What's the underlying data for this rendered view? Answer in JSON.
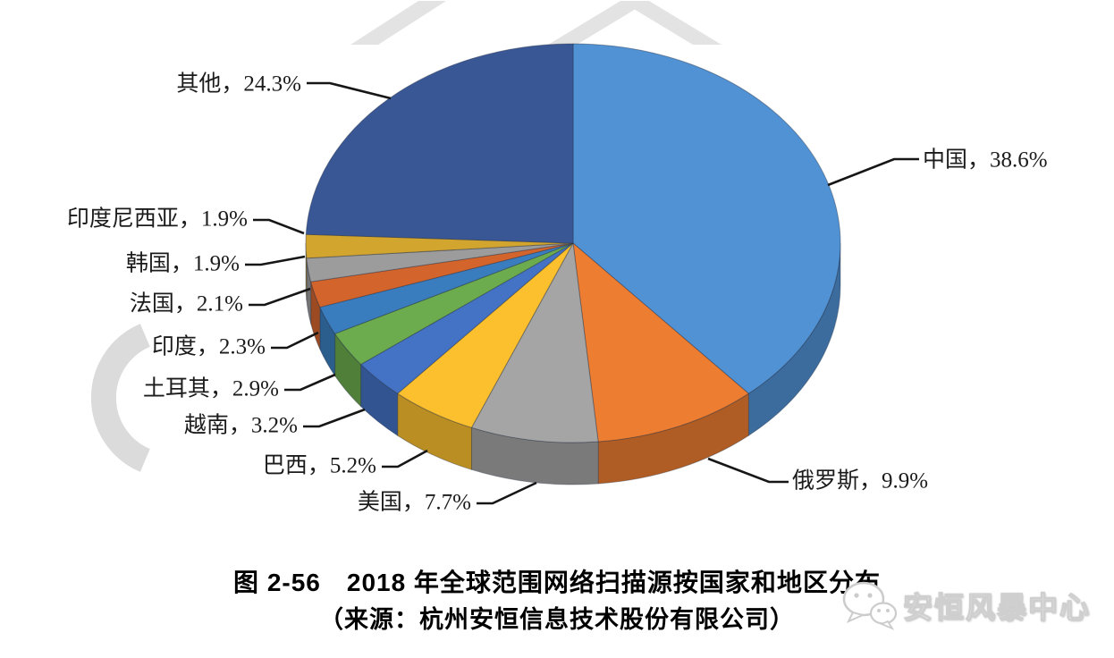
{
  "figure": {
    "caption_line1": "图 2-56　2018 年全球范围网络扫描源按国家和地区分布",
    "caption_line2": "（来源：杭州安恒信息技术股份有限公司）"
  },
  "watermark": {
    "text": "安恒风暴中心",
    "icon": "wechat-icon"
  },
  "chart_data": {
    "type": "pie",
    "style": "3d",
    "title": "2018 年全球范围网络扫描源按国家和地区分布",
    "source": "杭州安恒信息技术股份有限公司",
    "unit": "%",
    "start_angle_deg": 0,
    "direction": "clockwise",
    "legend": "none",
    "labels_position": "outside-with-leader-lines",
    "label_separator": "，",
    "slices": [
      {
        "label": "中国",
        "value": 38.6,
        "color": "#5192D4"
      },
      {
        "label": "俄罗斯",
        "value": 9.9,
        "color": "#ED7D31"
      },
      {
        "label": "美国",
        "value": 7.7,
        "color": "#A5A5A5"
      },
      {
        "label": "巴西",
        "value": 5.2,
        "color": "#FCC02E"
      },
      {
        "label": "越南",
        "value": 3.2,
        "color": "#4472C4"
      },
      {
        "label": "土耳其",
        "value": 2.9,
        "color": "#6CAB4E"
      },
      {
        "label": "印度",
        "value": 2.3,
        "color": "#3A7DBF"
      },
      {
        "label": "法国",
        "value": 2.1,
        "color": "#D2642C"
      },
      {
        "label": "韩国",
        "value": 1.9,
        "color": "#9C9C9C"
      },
      {
        "label": "印度尼西亚",
        "value": 1.9,
        "color": "#D2A52F"
      },
      {
        "label": "其他",
        "value": 24.3,
        "color": "#3A5795"
      }
    ]
  }
}
